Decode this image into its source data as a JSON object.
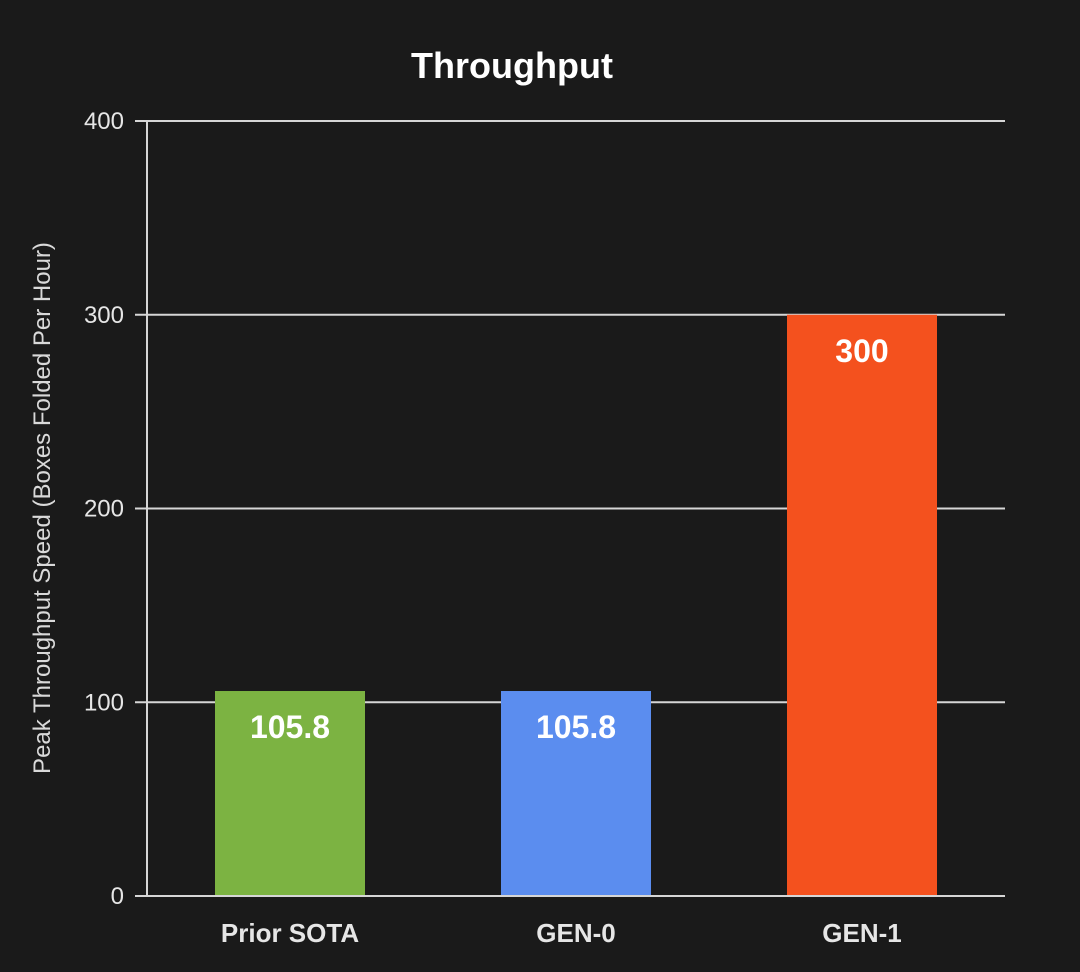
{
  "chart_data": {
    "type": "bar",
    "title": "Throughput",
    "xlabel": "",
    "ylabel": "Peak Throughput Speed (Boxes Folded Per Hour)",
    "categories": [
      "Prior SOTA",
      "GEN-0",
      "GEN-1"
    ],
    "values": [
      105.8,
      105.8,
      300
    ],
    "data_labels": [
      "105.8",
      "105.8",
      "300"
    ],
    "colors": [
      "#7cb342",
      "#5b8def",
      "#f4511e"
    ],
    "ylim": [
      0,
      400
    ],
    "yticks": [
      0,
      100,
      200,
      300,
      400
    ],
    "ytick_labels": [
      "0",
      "100",
      "200",
      "300",
      "400"
    ],
    "grid": true,
    "legend": "none"
  },
  "theme": {
    "background": "#1a1a1a",
    "text": "#ffffff",
    "grid": "#d6d6d6"
  }
}
